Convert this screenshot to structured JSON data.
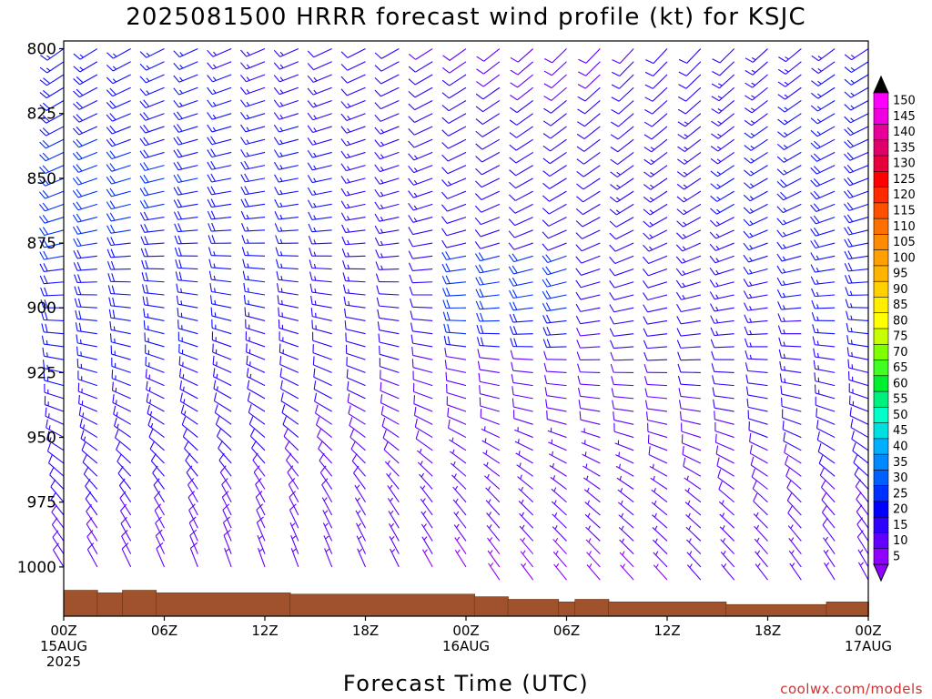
{
  "chart_data": {
    "type": "wind-barb time-height",
    "title": "2025081500 HRRR forecast wind profile (kt) for KSJC",
    "xlabel": "Forecast Time (UTC)",
    "credit": "coolwx.com/models",
    "y_ticks": [
      "800",
      "825",
      "850",
      "875",
      "900",
      "925",
      "950",
      "975",
      "1000"
    ],
    "y_range_hpa": [
      797,
      1019
    ],
    "x_range_hours": [
      0,
      48
    ],
    "x_ticks": [
      {
        "hour": 0,
        "lines": [
          "00Z",
          "15AUG",
          "2025"
        ]
      },
      {
        "hour": 6,
        "lines": [
          "06Z"
        ]
      },
      {
        "hour": 12,
        "lines": [
          "12Z"
        ]
      },
      {
        "hour": 18,
        "lines": [
          "18Z"
        ]
      },
      {
        "hour": 24,
        "lines": [
          "00Z",
          "16AUG"
        ]
      },
      {
        "hour": 30,
        "lines": [
          "06Z"
        ]
      },
      {
        "hour": 36,
        "lines": [
          "12Z"
        ]
      },
      {
        "hour": 42,
        "lines": [
          "18Z"
        ]
      },
      {
        "hour": 48,
        "lines": [
          "00Z",
          "17AUG"
        ]
      }
    ],
    "colorbar": {
      "labels": [
        "150",
        "145",
        "140",
        "135",
        "130",
        "125",
        "120",
        "115",
        "110",
        "105",
        "100",
        "95",
        "90",
        "85",
        "80",
        "75",
        "70",
        "65",
        "60",
        "55",
        "50",
        "45",
        "40",
        "35",
        "30",
        "25",
        "20",
        "15",
        "10",
        "5"
      ],
      "colors": [
        "#ff00ff",
        "#f000e0",
        "#e6009a",
        "#e0006a",
        "#e6003c",
        "#ff0000",
        "#ff2a00",
        "#ff5000",
        "#ff7000",
        "#ff8c00",
        "#ffa000",
        "#ffb400",
        "#ffd000",
        "#ffee00",
        "#ffff00",
        "#c8ff00",
        "#80ff00",
        "#40ff20",
        "#00f030",
        "#00f080",
        "#00ffc8",
        "#00e0e0",
        "#00b0ff",
        "#0088ff",
        "#0060ff",
        "#0030ff",
        "#0000ff",
        "#3000ff",
        "#6000ff",
        "#9000ff"
      ]
    },
    "terrain": [
      {
        "h0": 0,
        "h1": 2,
        "p": 1009
      },
      {
        "h0": 2,
        "h1": 3.5,
        "p": 1010
      },
      {
        "h0": 3.5,
        "h1": 5.5,
        "p": 1009
      },
      {
        "h0": 5.5,
        "h1": 13.5,
        "p": 1010
      },
      {
        "h0": 13.5,
        "h1": 24.5,
        "p": 1010.5
      },
      {
        "h0": 24.5,
        "h1": 26.5,
        "p": 1011.5
      },
      {
        "h0": 26.5,
        "h1": 29.5,
        "p": 1012.5
      },
      {
        "h0": 29.5,
        "h1": 30.5,
        "p": 1013.5
      },
      {
        "h0": 30.5,
        "h1": 32.5,
        "p": 1012.5
      },
      {
        "h0": 32.5,
        "h1": 39.5,
        "p": 1013.5
      },
      {
        "h0": 39.5,
        "h1": 45.5,
        "p": 1014.5
      },
      {
        "h0": 45.5,
        "h1": 48,
        "p": 1013.5
      }
    ],
    "barbs": {
      "hours": [
        0,
        2,
        4,
        6,
        8,
        10,
        12,
        14,
        16,
        18,
        20,
        22,
        24,
        26,
        28,
        30,
        32,
        34,
        36,
        38,
        40,
        42,
        44,
        46,
        48
      ],
      "levels": [
        800,
        805,
        810,
        815,
        820,
        825,
        830,
        835,
        840,
        845,
        850,
        855,
        860,
        865,
        870,
        875,
        880,
        885,
        890,
        895,
        900,
        905,
        910,
        915,
        920,
        925,
        930,
        935,
        940,
        945,
        950,
        955,
        960,
        965,
        970,
        975,
        980,
        985,
        990,
        995,
        1000,
        1005
      ],
      "direction_deg_by_level": [
        [
          800,
          235
        ],
        [
          860,
          250
        ],
        [
          900,
          270
        ],
        [
          940,
          290
        ],
        [
          975,
          320
        ],
        [
          1005,
          330
        ]
      ],
      "speed_kt_by_level": [
        [
          800,
          15
        ],
        [
          850,
          20
        ],
        [
          900,
          17
        ],
        [
          950,
          12
        ],
        [
          1005,
          7
        ]
      ],
      "note": "direction/speed profiles vary smoothly with forecast hour; barbs drawn to standard convention"
    }
  }
}
